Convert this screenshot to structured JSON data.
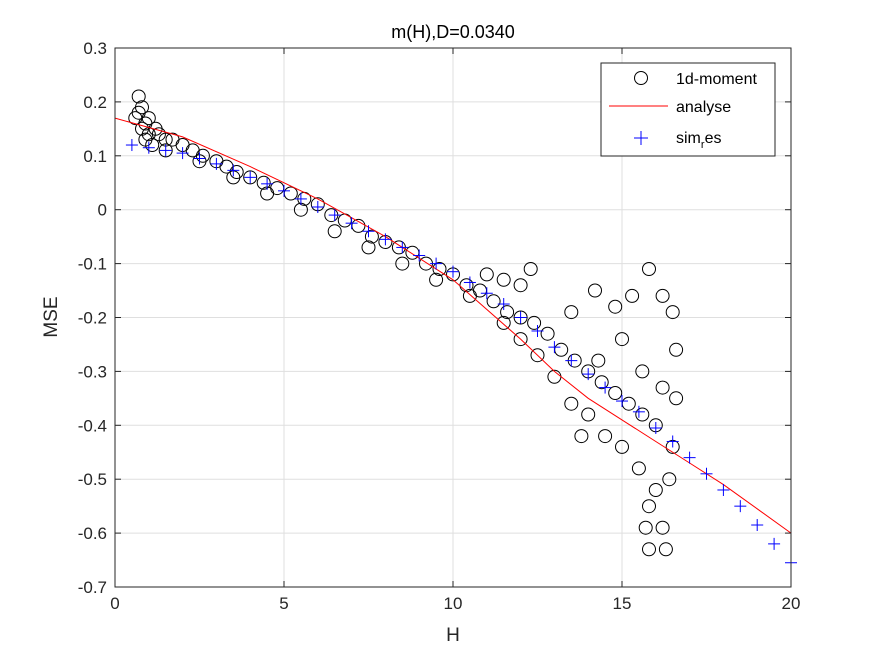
{
  "chart_data": {
    "type": "scatter",
    "title": "m(H),D=0.0340",
    "xlabel": "H",
    "ylabel": "MSE",
    "xlim": [
      0,
      20
    ],
    "ylim": [
      -0.7,
      0.3
    ],
    "xticks": [
      0,
      5,
      10,
      15,
      20
    ],
    "yticks": [
      -0.7,
      -0.6,
      -0.5,
      -0.4,
      -0.3,
      -0.2,
      -0.1,
      0,
      0.1,
      0.2,
      0.3
    ],
    "xtick_labels": [
      "0",
      "5",
      "10",
      "15",
      "20"
    ],
    "ytick_labels": [
      "-0.7",
      "-0.6",
      "-0.5",
      "-0.4",
      "-0.3",
      "-0.2",
      "-0.1",
      "0",
      "0.1",
      "0.2",
      "0.3"
    ],
    "grid": true,
    "legend_position": "top-right",
    "series": [
      {
        "name": "1d-moment",
        "kind": "scatter",
        "marker": "circle",
        "color": "#000000",
        "points": [
          [
            0.6,
            0.17
          ],
          [
            0.7,
            0.21
          ],
          [
            0.7,
            0.18
          ],
          [
            0.8,
            0.15
          ],
          [
            0.8,
            0.19
          ],
          [
            0.9,
            0.13
          ],
          [
            0.9,
            0.16
          ],
          [
            1.0,
            0.17
          ],
          [
            1.0,
            0.14
          ],
          [
            1.1,
            0.12
          ],
          [
            1.2,
            0.15
          ],
          [
            1.3,
            0.14
          ],
          [
            1.5,
            0.13
          ],
          [
            1.7,
            0.13
          ],
          [
            2.0,
            0.12
          ],
          [
            2.3,
            0.11
          ],
          [
            2.6,
            0.1
          ],
          [
            3.0,
            0.09
          ],
          [
            3.3,
            0.08
          ],
          [
            3.6,
            0.07
          ],
          [
            4.0,
            0.06
          ],
          [
            4.4,
            0.05
          ],
          [
            4.8,
            0.04
          ],
          [
            5.2,
            0.03
          ],
          [
            5.6,
            0.02
          ],
          [
            6.0,
            0.01
          ],
          [
            6.4,
            -0.01
          ],
          [
            6.8,
            -0.02
          ],
          [
            7.2,
            -0.03
          ],
          [
            7.6,
            -0.05
          ],
          [
            8.0,
            -0.06
          ],
          [
            8.4,
            -0.07
          ],
          [
            8.8,
            -0.08
          ],
          [
            9.2,
            -0.1
          ],
          [
            9.6,
            -0.11
          ],
          [
            10.0,
            -0.12
          ],
          [
            10.4,
            -0.14
          ],
          [
            10.8,
            -0.15
          ],
          [
            11.2,
            -0.17
          ],
          [
            11.6,
            -0.19
          ],
          [
            12.0,
            -0.2
          ],
          [
            12.4,
            -0.21
          ],
          [
            12.8,
            -0.23
          ],
          [
            13.2,
            -0.26
          ],
          [
            13.6,
            -0.28
          ],
          [
            14.0,
            -0.3
          ],
          [
            14.4,
            -0.32
          ],
          [
            14.8,
            -0.34
          ],
          [
            15.2,
            -0.36
          ],
          [
            15.6,
            -0.38
          ],
          [
            16.0,
            -0.4
          ],
          [
            11.0,
            -0.12
          ],
          [
            11.5,
            -0.13
          ],
          [
            12.0,
            -0.14
          ],
          [
            12.3,
            -0.11
          ],
          [
            13.5,
            -0.19
          ],
          [
            14.2,
            -0.15
          ],
          [
            14.8,
            -0.18
          ],
          [
            15.3,
            -0.16
          ],
          [
            15.8,
            -0.11
          ],
          [
            16.2,
            -0.16
          ],
          [
            16.5,
            -0.19
          ],
          [
            16.6,
            -0.26
          ],
          [
            16.6,
            -0.35
          ],
          [
            16.5,
            -0.44
          ],
          [
            16.4,
            -0.5
          ],
          [
            16.0,
            -0.52
          ],
          [
            15.8,
            -0.55
          ],
          [
            15.7,
            -0.59
          ],
          [
            16.2,
            -0.59
          ],
          [
            15.8,
            -0.63
          ],
          [
            16.3,
            -0.63
          ],
          [
            13.0,
            -0.31
          ],
          [
            13.5,
            -0.36
          ],
          [
            14.0,
            -0.38
          ],
          [
            14.5,
            -0.42
          ],
          [
            15.0,
            -0.44
          ],
          [
            15.5,
            -0.48
          ],
          [
            13.8,
            -0.42
          ],
          [
            14.3,
            -0.28
          ],
          [
            15.0,
            -0.24
          ],
          [
            15.6,
            -0.3
          ],
          [
            16.2,
            -0.33
          ],
          [
            12.5,
            -0.27
          ],
          [
            12.0,
            -0.24
          ],
          [
            11.5,
            -0.21
          ],
          [
            10.5,
            -0.16
          ],
          [
            9.5,
            -0.13
          ],
          [
            8.5,
            -0.1
          ],
          [
            7.5,
            -0.07
          ],
          [
            6.5,
            -0.04
          ],
          [
            5.5,
            0.0
          ],
          [
            4.5,
            0.03
          ],
          [
            3.5,
            0.06
          ],
          [
            2.5,
            0.09
          ],
          [
            1.5,
            0.11
          ]
        ]
      },
      {
        "name": "analyse",
        "kind": "line",
        "color": "#ff0000",
        "points": [
          [
            0,
            0.17
          ],
          [
            2,
            0.135
          ],
          [
            4,
            0.08
          ],
          [
            6,
            0.02
          ],
          [
            8,
            -0.05
          ],
          [
            10,
            -0.13
          ],
          [
            12,
            -0.24
          ],
          [
            13,
            -0.3
          ],
          [
            14,
            -0.35
          ],
          [
            15,
            -0.39
          ],
          [
            16,
            -0.43
          ],
          [
            17,
            -0.47
          ],
          [
            18,
            -0.51
          ],
          [
            19,
            -0.555
          ],
          [
            20,
            -0.6
          ]
        ]
      },
      {
        "name": "sim",
        "name_subscript": "r",
        "name_suffix": "es",
        "kind": "scatter",
        "marker": "plus",
        "color": "#0000ff",
        "points": [
          [
            0.5,
            0.12
          ],
          [
            1.0,
            0.115
          ],
          [
            1.5,
            0.11
          ],
          [
            2.0,
            0.105
          ],
          [
            2.5,
            0.095
          ],
          [
            3.0,
            0.085
          ],
          [
            3.5,
            0.073
          ],
          [
            4.0,
            0.06
          ],
          [
            4.5,
            0.048
          ],
          [
            5.0,
            0.035
          ],
          [
            5.5,
            0.02
          ],
          [
            6.0,
            0.005
          ],
          [
            6.5,
            -0.01
          ],
          [
            7.0,
            -0.025
          ],
          [
            7.5,
            -0.04
          ],
          [
            8.0,
            -0.055
          ],
          [
            8.5,
            -0.07
          ],
          [
            9.0,
            -0.085
          ],
          [
            9.5,
            -0.1
          ],
          [
            10.0,
            -0.115
          ],
          [
            10.5,
            -0.135
          ],
          [
            11.0,
            -0.155
          ],
          [
            11.5,
            -0.175
          ],
          [
            12.0,
            -0.2
          ],
          [
            12.5,
            -0.225
          ],
          [
            13.0,
            -0.255
          ],
          [
            13.5,
            -0.28
          ],
          [
            14.0,
            -0.305
          ],
          [
            14.5,
            -0.33
          ],
          [
            15.0,
            -0.355
          ],
          [
            15.5,
            -0.375
          ],
          [
            16.0,
            -0.405
          ],
          [
            16.5,
            -0.43
          ],
          [
            17.0,
            -0.46
          ],
          [
            17.5,
            -0.49
          ],
          [
            18.0,
            -0.52
          ],
          [
            18.5,
            -0.55
          ],
          [
            19.0,
            -0.585
          ],
          [
            19.5,
            -0.62
          ],
          [
            20.0,
            -0.655
          ]
        ]
      }
    ]
  }
}
